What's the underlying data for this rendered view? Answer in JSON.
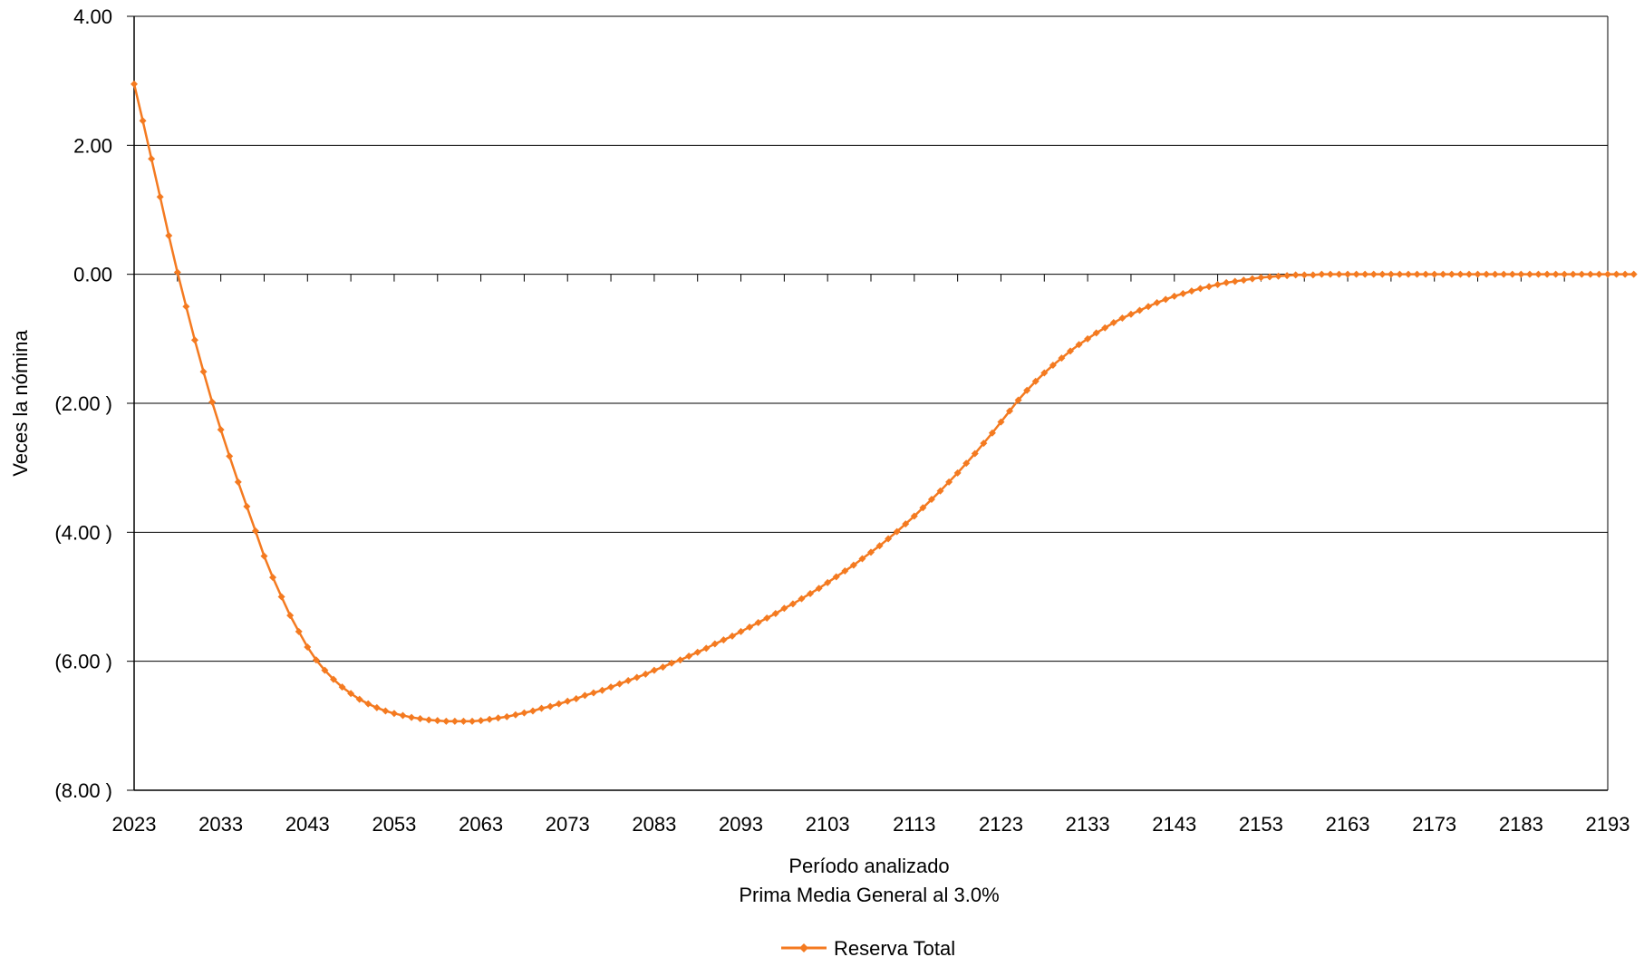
{
  "chart_data": {
    "type": "line",
    "title": "",
    "xlabel": "Período analizado",
    "subtitle": "Prima Media General al 3.0%",
    "ylabel": "Veces la nómina",
    "xlim": [
      2023,
      2193
    ],
    "ylim": [
      -8,
      4
    ],
    "x_ticks": [
      2023,
      2033,
      2043,
      2053,
      2063,
      2073,
      2083,
      2093,
      2103,
      2113,
      2123,
      2133,
      2143,
      2153,
      2163,
      2173,
      2183,
      2193
    ],
    "x_tick_labels": [
      "2023",
      "2033",
      "2043",
      "2053",
      "2063",
      "2073",
      "2083",
      "2093",
      "2103",
      "2113",
      "2123",
      "2133",
      "2143",
      "2153",
      "2163",
      "2173",
      "2183",
      "2193"
    ],
    "y_ticks": [
      4,
      2,
      0,
      -2,
      -4,
      -6,
      -8
    ],
    "y_tick_labels": [
      "4.00",
      "2.00",
      "0.00",
      "(2.00 )",
      "(4.00 )",
      "(6.00 )",
      "(8.00 )"
    ],
    "grid": "horizontal",
    "legend_position": "bottom-center",
    "series": [
      {
        "name": "Reserva Total",
        "color": "#F47A20",
        "marker": "diamond",
        "x_start": 2023,
        "x_step": 1,
        "values": [
          2.95,
          2.38,
          1.79,
          1.2,
          0.6,
          0.03,
          -0.5,
          -1.02,
          -1.51,
          -1.98,
          -2.41,
          -2.82,
          -3.22,
          -3.6,
          -3.98,
          -4.37,
          -4.7,
          -5.0,
          -5.29,
          -5.54,
          -5.78,
          -5.98,
          -6.14,
          -6.28,
          -6.4,
          -6.5,
          -6.59,
          -6.66,
          -6.72,
          -6.77,
          -6.81,
          -6.84,
          -6.87,
          -6.89,
          -6.91,
          -6.92,
          -6.93,
          -6.93,
          -6.93,
          -6.93,
          -6.92,
          -6.9,
          -6.88,
          -6.86,
          -6.83,
          -6.8,
          -6.77,
          -6.73,
          -6.7,
          -6.66,
          -6.62,
          -6.58,
          -6.53,
          -6.49,
          -6.45,
          -6.4,
          -6.35,
          -6.3,
          -6.25,
          -6.2,
          -6.14,
          -6.09,
          -6.03,
          -5.98,
          -5.92,
          -5.86,
          -5.8,
          -5.73,
          -5.67,
          -5.61,
          -5.54,
          -5.47,
          -5.4,
          -5.33,
          -5.26,
          -5.18,
          -5.11,
          -5.03,
          -4.95,
          -4.87,
          -4.78,
          -4.69,
          -4.6,
          -4.51,
          -4.41,
          -4.31,
          -4.21,
          -4.1,
          -3.99,
          -3.87,
          -3.75,
          -3.62,
          -3.49,
          -3.36,
          -3.22,
          -3.08,
          -2.93,
          -2.78,
          -2.62,
          -2.46,
          -2.29,
          -2.12,
          -1.95,
          -1.8,
          -1.66,
          -1.53,
          -1.41,
          -1.3,
          -1.19,
          -1.09,
          -1.0,
          -0.91,
          -0.83,
          -0.75,
          -0.68,
          -0.62,
          -0.56,
          -0.5,
          -0.44,
          -0.39,
          -0.34,
          -0.3,
          -0.26,
          -0.22,
          -0.19,
          -0.16,
          -0.13,
          -0.11,
          -0.09,
          -0.07,
          -0.05,
          -0.04,
          -0.03,
          -0.02,
          -0.01,
          -0.01,
          -0.01,
          0.0,
          0.0,
          0.0,
          0.0,
          0.0,
          0.0,
          0.0,
          0.0,
          0.0,
          0.0,
          0.0,
          0.0,
          0.0,
          0.0,
          0.0,
          0.0,
          0.0,
          0.0,
          0.0,
          0.0,
          0.0,
          0.0,
          0.0,
          0.0,
          0.0,
          0.0,
          0.0,
          0.0,
          0.0,
          0.0,
          0.0,
          0.0,
          0.0,
          0.0,
          0.0,
          0.0,
          0.0
        ]
      }
    ]
  },
  "colors": {
    "positive_tick": "#000000",
    "negative_tick": "#E02020",
    "gridline": "#000000",
    "axis": "#000000"
  },
  "legend": {
    "label": "Reserva Total",
    "marker_icon": "diamond-marker-icon"
  }
}
